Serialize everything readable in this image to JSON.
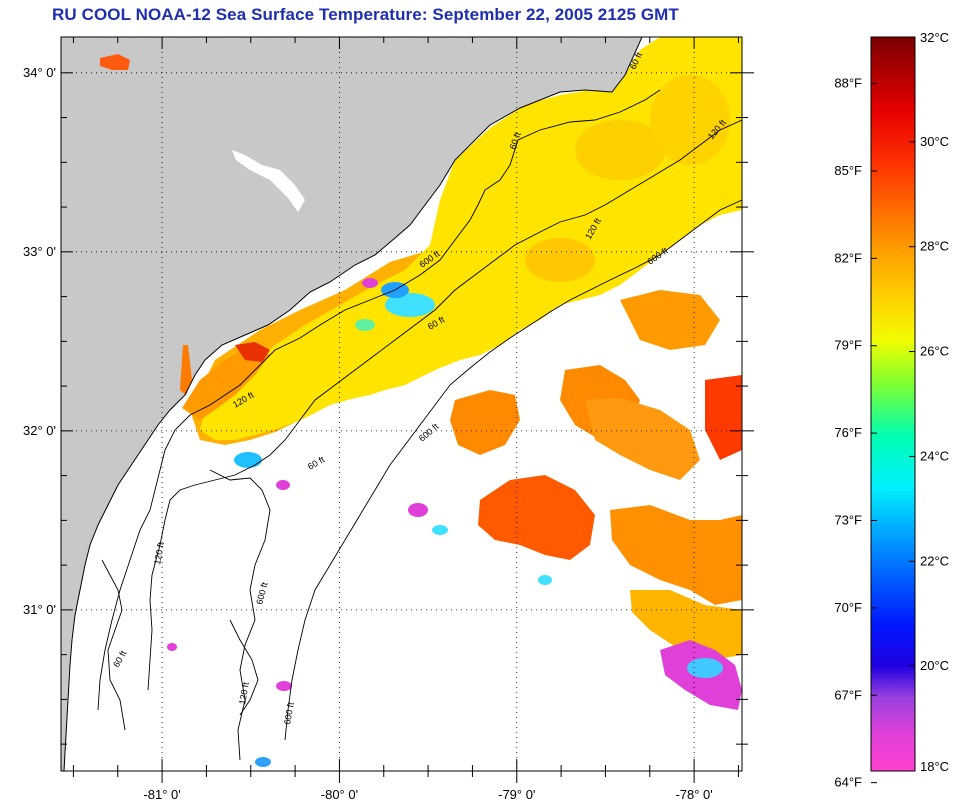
{
  "title": "RU COOL  NOAA-12  Sea Surface Temperature:  September 22, 2005 2125 GMT",
  "colors": {
    "land": "#c8c8c8",
    "water_nodata": "#ffffff",
    "title": "#1f2fb0",
    "coast": "#000000"
  },
  "map": {
    "lat_labels": [
      "34° 0'",
      "33° 0'",
      "32° 0'",
      "31° 0'"
    ],
    "lon_labels": [
      "-81° 0'",
      "-80° 0'",
      "-79° 0'",
      "-78° 0'"
    ],
    "lat_values": [
      34,
      33,
      32,
      31
    ],
    "lon_values": [
      -81,
      -80,
      -79,
      -78
    ],
    "lon_range": [
      -81.57,
      -77.73
    ],
    "lat_range": [
      30.1,
      34.2
    ],
    "gridlines": "dotted",
    "contour_labels": [
      "60 ft",
      "120 ft",
      "600 ft",
      "60 ft",
      "120 ft",
      "600 ft",
      "60 ft",
      "120 ft",
      "600 ft",
      "60 ft",
      "120 ft",
      "600 ft",
      "60 ft",
      "120 ft",
      "600 ft"
    ]
  },
  "colorbar": {
    "units_left": "°F",
    "units_right": "°C",
    "fahrenheit_labels": [
      "88°F",
      "85°F",
      "82°F",
      "79°F",
      "76°F",
      "73°F",
      "70°F",
      "67°F",
      "64°F"
    ],
    "fahrenheit_values": [
      88,
      85,
      82,
      79,
      76,
      73,
      70,
      67,
      64
    ],
    "celsius_labels": [
      "32°C",
      "30°C",
      "28°C",
      "26°C",
      "24°C",
      "22°C",
      "20°C",
      "18°C"
    ],
    "celsius_values": [
      32,
      30,
      28,
      26,
      24,
      22,
      20,
      18
    ],
    "range_c": [
      18,
      32
    ],
    "gradient_stops": [
      {
        "c": 32,
        "color": "#7a0000"
      },
      {
        "c": 30.6,
        "color": "#e60000"
      },
      {
        "c": 29.6,
        "color": "#ff3000"
      },
      {
        "c": 28,
        "color": "#ff9a00"
      },
      {
        "c": 27,
        "color": "#ffd200"
      },
      {
        "c": 26.2,
        "color": "#f0ff00"
      },
      {
        "c": 25.4,
        "color": "#80ff30"
      },
      {
        "c": 24.4,
        "color": "#00ffb0"
      },
      {
        "c": 23.4,
        "color": "#00f0ff"
      },
      {
        "c": 22.3,
        "color": "#0090ff"
      },
      {
        "c": 20.8,
        "color": "#0018ff"
      },
      {
        "c": 20,
        "color": "#2000e0"
      },
      {
        "c": 19.4,
        "color": "#9a40e0"
      },
      {
        "c": 18.7,
        "color": "#e040d8"
      },
      {
        "c": 18,
        "color": "#ff40d0"
      }
    ]
  }
}
